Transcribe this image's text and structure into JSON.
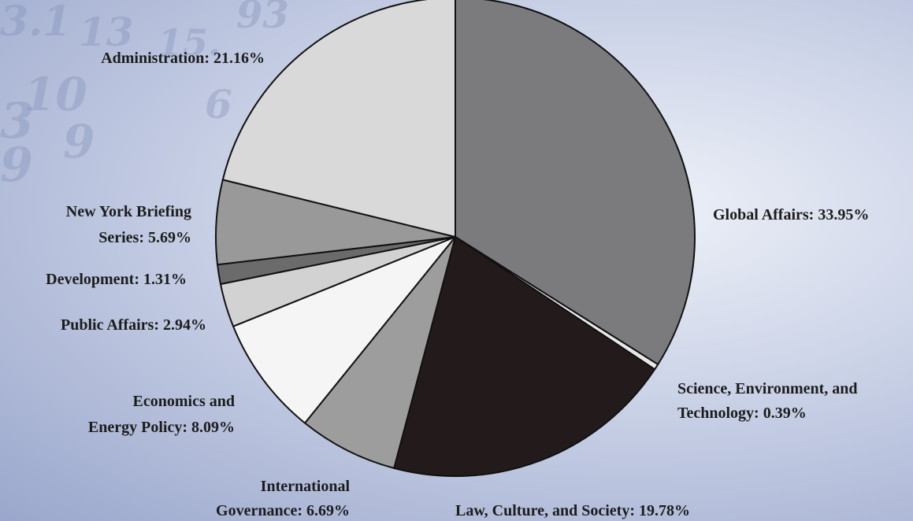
{
  "chart_data": {
    "type": "pie",
    "title": "",
    "slices": [
      {
        "label": "Global Affairs",
        "value": 33.95,
        "display": "33.95%",
        "color": "#7b7b7e"
      },
      {
        "label": "Science, Environment, and Technology",
        "value": 0.39,
        "display": "0.39%",
        "color": "#e8e8e8"
      },
      {
        "label": "Law, Culture, and Society",
        "value": 19.78,
        "display": "19.78%",
        "color": "#231a1c"
      },
      {
        "label": "International Governance",
        "value": 6.69,
        "display": "6.69%",
        "color": "#9d9d9d"
      },
      {
        "label": "Economics and Energy Policy",
        "value": 8.09,
        "display": "8.09%",
        "color": "#f5f5f5"
      },
      {
        "label": "Public Affairs",
        "value": 2.94,
        "display": "2.94%",
        "color": "#d2d2d2"
      },
      {
        "label": "Development",
        "value": 1.31,
        "display": "1.31%",
        "color": "#6b6b6b"
      },
      {
        "label": "New York Briefing Series",
        "value": 5.69,
        "display": "5.69%",
        "color": "#999999"
      },
      {
        "label": "Administration",
        "value": 21.16,
        "display": "21.16%",
        "color": "#d9d9d9"
      }
    ]
  }
}
